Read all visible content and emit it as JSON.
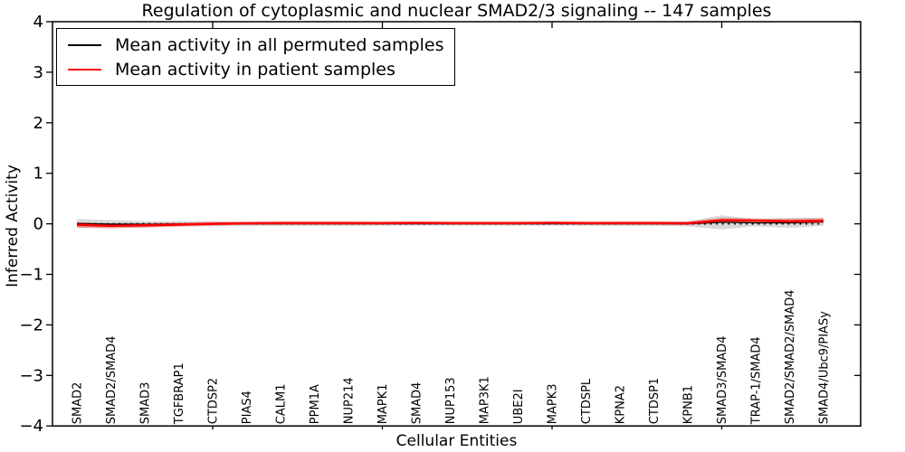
{
  "chart_data": {
    "type": "line",
    "title": "Regulation of cytoplasmic and nuclear SMAD2/3 signaling -- 147 samples",
    "xlabel": "Cellular Entities",
    "ylabel": "Inferred Activity",
    "ylim": [
      -4,
      4
    ],
    "grid": false,
    "legend_position": "upper left",
    "yticks": [
      {
        "v": 4,
        "label": "4"
      },
      {
        "v": 3,
        "label": "3"
      },
      {
        "v": 2,
        "label": "2"
      },
      {
        "v": 1,
        "label": "1"
      },
      {
        "v": 0,
        "label": "0"
      },
      {
        "v": -1,
        "label": "−1"
      },
      {
        "v": -2,
        "label": "−2"
      },
      {
        "v": -3,
        "label": "−3"
      },
      {
        "v": -4,
        "label": "−4"
      }
    ],
    "xtick_marks_at_positions": [
      5,
      10,
      15,
      20
    ],
    "categories": [
      "SMAD2",
      "SMAD2/SMAD4",
      "SMAD3",
      "TGFBRAP1",
      "CTDSP2",
      "PIAS4",
      "CALM1",
      "PPM1A",
      "NUP214",
      "MAPK1",
      "SMAD4",
      "NUP153",
      "MAP3K1",
      "UBE2I",
      "MAPK3",
      "CTDSPL",
      "KPNA2",
      "CTDSP1",
      "KPNB1",
      "SMAD3/SMAD4",
      "TRAP-1/SMAD4",
      "SMAD2/SMAD2/SMAD4",
      "SMAD4/Ubc9/PIASy"
    ],
    "series": [
      {
        "name": "Mean activity in all permuted samples",
        "color": "#000000",
        "line_width": 1.3,
        "band_color": "rgba(0,0,0,0.15)",
        "values": [
          0.005,
          -0.005,
          -0.01,
          0.0,
          0.0,
          0.0,
          0.0,
          0.0,
          0.0,
          0.0,
          0.0,
          0.0,
          0.0,
          0.0,
          0.0,
          0.0,
          0.0,
          0.0,
          0.0,
          0.03,
          0.02,
          0.02,
          0.04
        ],
        "std": [
          0.09,
          0.08,
          0.06,
          0.05,
          0.05,
          0.04,
          0.04,
          0.04,
          0.04,
          0.035,
          0.035,
          0.035,
          0.035,
          0.035,
          0.035,
          0.035,
          0.04,
          0.04,
          0.05,
          0.14,
          0.07,
          0.1,
          0.08
        ]
      },
      {
        "name": "Mean activity in patient samples",
        "color": "#ff0000",
        "line_width": 2.6,
        "band_color": "rgba(255,0,0,0.25)",
        "values": [
          -0.02,
          -0.04,
          -0.03,
          -0.015,
          0.0,
          0.01,
          0.015,
          0.015,
          0.015,
          0.015,
          0.02,
          0.015,
          0.015,
          0.015,
          0.02,
          0.015,
          0.015,
          0.015,
          0.01,
          0.07,
          0.065,
          0.05,
          0.06
        ],
        "std": [
          0.055,
          0.05,
          0.045,
          0.04,
          0.035,
          0.03,
          0.03,
          0.03,
          0.03,
          0.025,
          0.025,
          0.025,
          0.025,
          0.025,
          0.025,
          0.025,
          0.03,
          0.03,
          0.035,
          0.05,
          0.045,
          0.05,
          0.055
        ]
      }
    ],
    "zero_line": {
      "style": "dotted",
      "color": "#000000",
      "y": 0
    }
  }
}
